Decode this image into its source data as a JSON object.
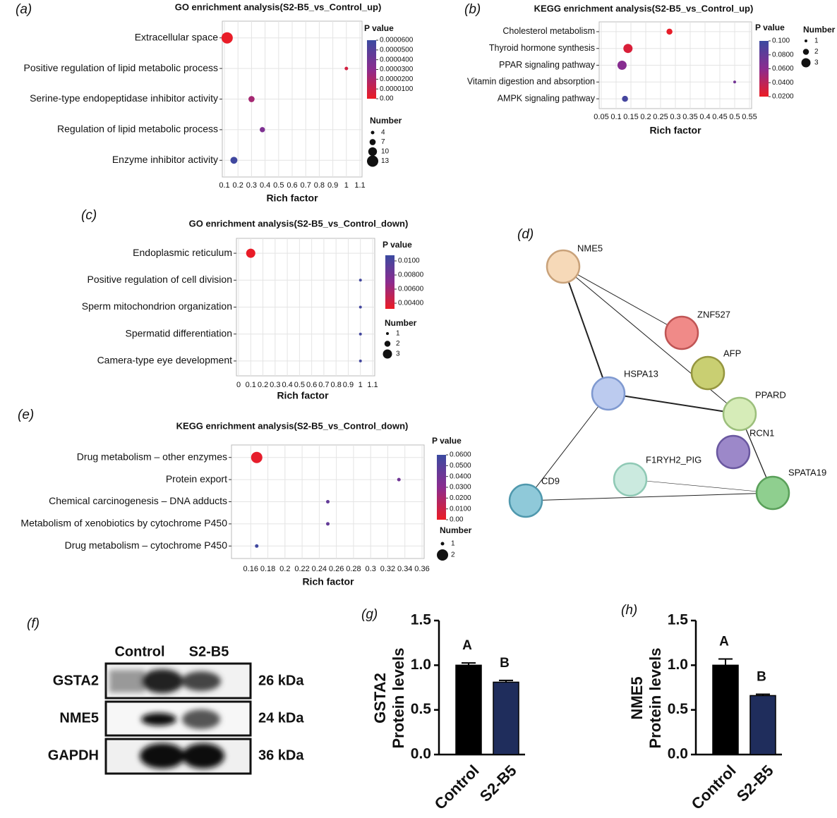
{
  "chart_data": [
    {
      "type": "dot",
      "panel_label": "(a)",
      "title": "GO enrichment analysis(S2-B5_vs_Control_up)",
      "categories": [
        "Extracellular space",
        "Positive regulation of lipid metabolic process",
        "Serine-type endopeptidase inhibitor activity",
        "Regulation of lipid metabolic process",
        "Enzyme inhibitor activity"
      ],
      "values": [
        0.12,
        1.0,
        0.3,
        0.38,
        0.17
      ],
      "pvalues": [
        1e-06,
        8e-06,
        2.2e-05,
        3.5e-05,
        5.8e-05
      ],
      "counts": [
        13,
        4,
        7,
        6,
        8
      ],
      "xlabel": "Rich factor",
      "xlim": [
        0.1,
        1.1
      ],
      "xticks": [
        0.1,
        0.2,
        0.3,
        0.4,
        0.5,
        0.6,
        0.7,
        0.8,
        0.9,
        1,
        1.1
      ],
      "color_title": "P value",
      "clim": [
        0,
        6e-05
      ],
      "colormap": [
        "#ec1c24",
        "#8b2c8f",
        "#3b4aa0"
      ],
      "cticks": [
        {
          "value": 0,
          "label": "0.00"
        },
        {
          "value": 1e-05,
          "label": "0.0000100"
        },
        {
          "value": 2e-05,
          "label": "0.0000200"
        },
        {
          "value": 3e-05,
          "label": "0.0000300"
        },
        {
          "value": 4e-05,
          "label": "0.0000400"
        },
        {
          "value": 5e-05,
          "label": "0.0000500"
        },
        {
          "value": 6e-05,
          "label": "0.0000600"
        }
      ],
      "size_title": "Number",
      "size_ticks": [
        4,
        7,
        10,
        13
      ],
      "grid": true
    },
    {
      "type": "dot",
      "panel_label": "(b)",
      "title": "KEGG enrichment analysis(S2-B5_vs_Control_up)",
      "categories": [
        "Cholesterol metabolism",
        "Thyroid hormone synthesis",
        "PPAR signaling pathway",
        "Vitamin digestion and absorption",
        "AMPK signaling pathway"
      ],
      "values": [
        0.28,
        0.14,
        0.12,
        0.5,
        0.13
      ],
      "pvalues": [
        0.022,
        0.028,
        0.062,
        0.072,
        0.095
      ],
      "counts": [
        2,
        3,
        3,
        1,
        2
      ],
      "xlabel": "Rich factor",
      "xlim": [
        0.05,
        0.55
      ],
      "xticks": [
        0.05,
        0.1,
        0.15,
        0.2,
        0.25,
        0.3,
        0.35,
        0.4,
        0.45,
        0.5,
        0.55
      ],
      "color_title": "P value",
      "clim": [
        0.02,
        0.1
      ],
      "colormap": [
        "#ec1c24",
        "#8b2c8f",
        "#3b4aa0"
      ],
      "cticks": [
        {
          "value": 0.02,
          "label": "0.0200"
        },
        {
          "value": 0.04,
          "label": "0.0400"
        },
        {
          "value": 0.06,
          "label": "0.0600"
        },
        {
          "value": 0.08,
          "label": "0.0800"
        },
        {
          "value": 0.1,
          "label": "0.100"
        }
      ],
      "size_title": "Number",
      "size_ticks": [
        1,
        2,
        3
      ],
      "grid": true
    },
    {
      "type": "dot",
      "panel_label": "(c)",
      "title": "GO enrichment analysis(S2-B5_vs_Control_down)",
      "categories": [
        "Endoplasmic reticulum",
        "Positive regulation of cell division",
        "Sperm mitochondrion organization",
        "Spermatid differentiation",
        "Camera-type eye development"
      ],
      "values": [
        0.1,
        1,
        1,
        1,
        1
      ],
      "pvalues": [
        0.0033,
        0.0104,
        0.0104,
        0.0104,
        0.0104
      ],
      "counts": [
        3,
        1,
        1,
        1,
        1
      ],
      "xlabel": "Rich factor",
      "xlim": [
        0,
        1.1
      ],
      "xticks": [
        0,
        0.1,
        0.2,
        0.3,
        0.4,
        0.5,
        0.6,
        0.7,
        0.8,
        0.9,
        1,
        1.1
      ],
      "color_title": "P value",
      "clim": [
        0.0032,
        0.0108
      ],
      "colormap": [
        "#ec1c24",
        "#8b2c8f",
        "#3b4aa0"
      ],
      "cticks": [
        {
          "value": 0.004,
          "label": "0.00400"
        },
        {
          "value": 0.006,
          "label": "0.00600"
        },
        {
          "value": 0.008,
          "label": "0.00800"
        },
        {
          "value": 0.01,
          "label": "0.0100"
        }
      ],
      "size_title": "Number",
      "size_ticks": [
        1,
        2,
        3
      ],
      "grid": true
    },
    {
      "type": "dot",
      "panel_label": "(e)",
      "title": "KEGG enrichment analysis(S2-B5_vs_Control_down)",
      "categories": [
        "Drug metabolism – other enzymes",
        "Protein export",
        "Chemical carcinogenesis – DNA adducts",
        "Metabolism of xenobiotics by cytochrome P450",
        "Drug metabolism – cytochrome P450"
      ],
      "values": [
        0.167,
        0.333,
        0.25,
        0.25,
        0.167
      ],
      "pvalues": [
        0.002,
        0.04,
        0.045,
        0.045,
        0.058
      ],
      "counts": [
        2,
        1,
        1,
        1,
        1
      ],
      "xlabel": "Rich factor",
      "xlim": [
        0.14,
        0.36
      ],
      "xticks": [
        0.16,
        0.18,
        0.2,
        0.22,
        0.24,
        0.26,
        0.28,
        0.3,
        0.32,
        0.34,
        0.36
      ],
      "color_title": "P value",
      "clim": [
        0,
        0.06
      ],
      "colormap": [
        "#ec1c24",
        "#8b2c8f",
        "#3b4aa0"
      ],
      "cticks": [
        {
          "value": 0,
          "label": "0.00"
        },
        {
          "value": 0.01,
          "label": "0.0100"
        },
        {
          "value": 0.02,
          "label": "0.0200"
        },
        {
          "value": 0.03,
          "label": "0.0300"
        },
        {
          "value": 0.04,
          "label": "0.0400"
        },
        {
          "value": 0.05,
          "label": "0.0500"
        },
        {
          "value": 0.06,
          "label": "0.0600"
        }
      ],
      "size_title": "Number",
      "size_ticks": [
        1,
        2
      ],
      "grid": true
    },
    {
      "type": "bar",
      "panel_label": "(g)",
      "ylabel": [
        "GSTA2",
        "Protein levels"
      ],
      "categories": [
        "Control",
        "S2-B5"
      ],
      "values": [
        1.0,
        0.81
      ],
      "errors": [
        0.025,
        0.02
      ],
      "letters": [
        "A",
        "B"
      ],
      "colors": [
        "#000000",
        "#1f2d5c"
      ],
      "ylim": [
        0,
        1.5
      ],
      "yticks": [
        {
          "value": 0,
          "label": "0.0"
        },
        0.5,
        {
          "value": 1,
          "label": "1.0"
        },
        1.5
      ]
    },
    {
      "type": "bar",
      "panel_label": "(h)",
      "ylabel": [
        "NME5",
        "Protein levels"
      ],
      "categories": [
        "Control",
        "S2-B5"
      ],
      "values": [
        1.0,
        0.66
      ],
      "errors": [
        0.07,
        0.015
      ],
      "letters": [
        "A",
        "B"
      ],
      "colors": [
        "#000000",
        "#1f2d5c"
      ],
      "ylim": [
        0,
        1.5
      ],
      "yticks": [
        {
          "value": 0,
          "label": "0.0"
        },
        0.5,
        {
          "value": 1,
          "label": "1.0"
        },
        1.5
      ]
    }
  ],
  "network": {
    "panel_label": "(d)",
    "nodes": [
      "NME5",
      "ZNF527",
      "AFP",
      "HSPA13",
      "PPARD",
      "RCN1",
      "F1RYH2_PIG",
      "SPATA19",
      "CD9"
    ]
  },
  "blot": {
    "panel_label": "(f)",
    "lanes": [
      "Control",
      "S2-B5"
    ],
    "rows": [
      {
        "protein": "GSTA2",
        "size": "26 kDa"
      },
      {
        "protein": "NME5",
        "size": "24 kDa"
      },
      {
        "protein": "GAPDH",
        "size": "36 kDa"
      }
    ]
  }
}
